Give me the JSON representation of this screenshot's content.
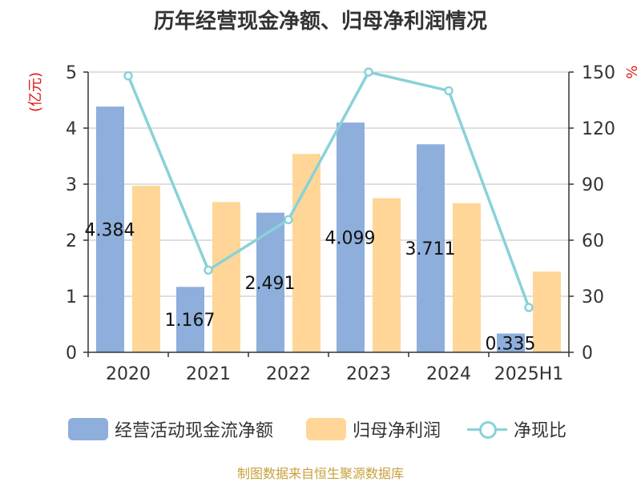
{
  "chart_data": {
    "type": "bar",
    "title": "历年经营现金净额、归母净利润情况",
    "categories": [
      "2020",
      "2021",
      "2022",
      "2023",
      "2024",
      "2025H1"
    ],
    "series": [
      {
        "name": "经营活动现金流净额",
        "type": "bar",
        "axis": "left",
        "values": [
          4.384,
          1.167,
          2.491,
          4.099,
          3.711,
          0.335
        ],
        "labels": [
          "4.384",
          "1.167",
          "2.491",
          "4.099",
          "3.711",
          "0.335"
        ]
      },
      {
        "name": "归母净利润",
        "type": "bar",
        "axis": "left",
        "values": [
          2.97,
          2.68,
          3.54,
          2.75,
          2.66,
          1.44
        ]
      },
      {
        "name": "净现比",
        "type": "line",
        "axis": "right",
        "values": [
          148,
          44,
          71,
          150,
          140,
          24
        ]
      }
    ],
    "y_left": {
      "label": "(亿元)",
      "min": 0,
      "max": 5,
      "ticks": [
        0,
        1,
        2,
        3,
        4,
        5
      ]
    },
    "y_right": {
      "label": "%",
      "min": 0,
      "max": 150,
      "ticks": [
        0,
        30,
        60,
        90,
        120,
        150
      ]
    },
    "grid": true,
    "legend_position": "bottom"
  },
  "colors": {
    "bar1": "#8eaedb",
    "bar2": "#ffd697",
    "line": "#88d2d8",
    "axis_label_red": "#dd1c1c",
    "source": "#c8a03c"
  },
  "legend": [
    {
      "label": "经营活动现金流净额"
    },
    {
      "label": "归母净利润"
    },
    {
      "label": "净现比"
    }
  ],
  "source_note": "制图数据来自恒生聚源数据库"
}
